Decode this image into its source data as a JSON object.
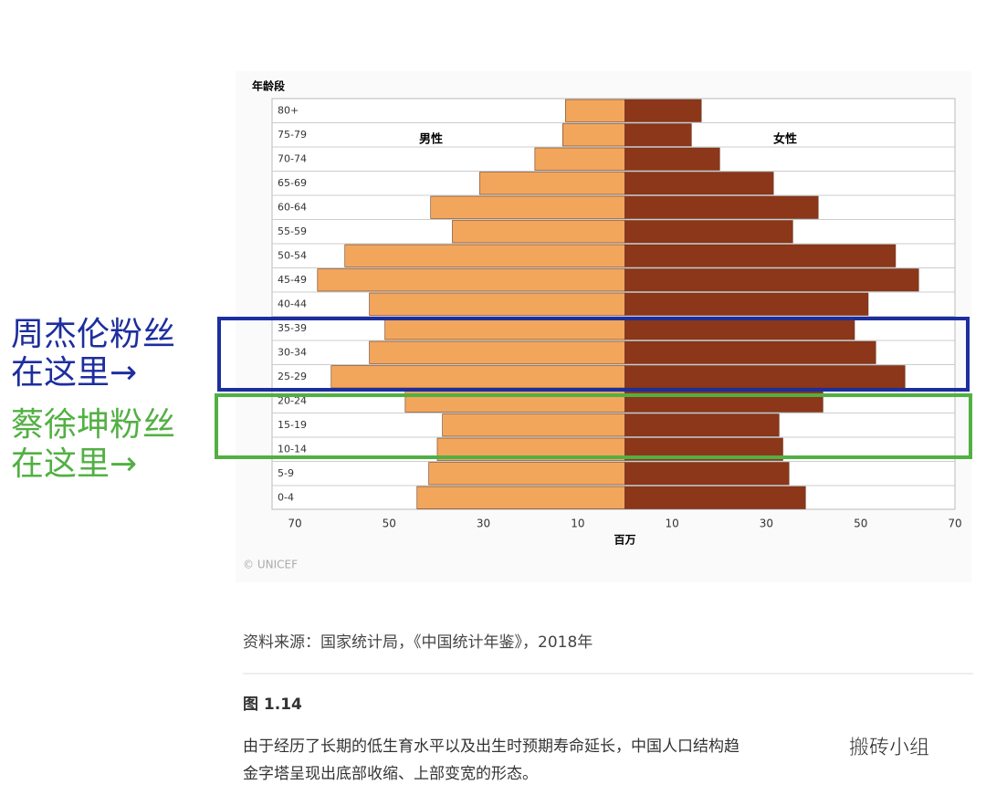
{
  "chart_data": {
    "type": "pyramid",
    "y_label": "年龄段",
    "x_label": "百万",
    "categories": [
      "80+",
      "75-79",
      "70-74",
      "65-69",
      "60-64",
      "55-59",
      "50-54",
      "45-49",
      "40-44",
      "35-39",
      "30-34",
      "25-29",
      "20-24",
      "15-19",
      "10-14",
      "5-9",
      "0-4"
    ],
    "series": [
      {
        "name": "男性",
        "color": "#f2a65c",
        "values": [
          12.6,
          13.2,
          19.1,
          30.8,
          41.2,
          36.6,
          59.4,
          65.2,
          54.2,
          50.9,
          54.2,
          62.3,
          46.6,
          38.7,
          39.8,
          41.6,
          44.1
        ]
      },
      {
        "name": "女性",
        "color": "#8c361a",
        "values": [
          16.2,
          14.1,
          20.1,
          31.5,
          41.0,
          35.6,
          57.4,
          62.3,
          51.6,
          48.7,
          53.2,
          59.4,
          42.0,
          32.7,
          33.5,
          34.8,
          38.3
        ]
      }
    ],
    "xlim": [
      -70,
      70
    ],
    "xticks": [
      {
        "value": -70,
        "label": "70"
      },
      {
        "value": -50,
        "label": "50"
      },
      {
        "value": -30,
        "label": "30"
      },
      {
        "value": -10,
        "label": "10"
      },
      10,
      30,
      50,
      70
    ],
    "credit": "© UNICEF"
  },
  "annotations": [
    {
      "lines": [
        "周杰伦粉丝",
        "在这里→"
      ],
      "color": "#1d2e9e"
    },
    {
      "lines": [
        "蔡徐坤粉丝",
        "在这里→"
      ],
      "color": "#52b043"
    }
  ],
  "source": "资料来源：国家统计局，《中国统计年鉴》，2018年",
  "figure": "图 1.14",
  "caption": [
    "由于经历了长期的低生育水平以及出生时预期寿命延长，中国人口结构趋",
    "金字塔呈现出底部收缩、上部变宽的形态。"
  ],
  "watermark": "搬砖小组"
}
